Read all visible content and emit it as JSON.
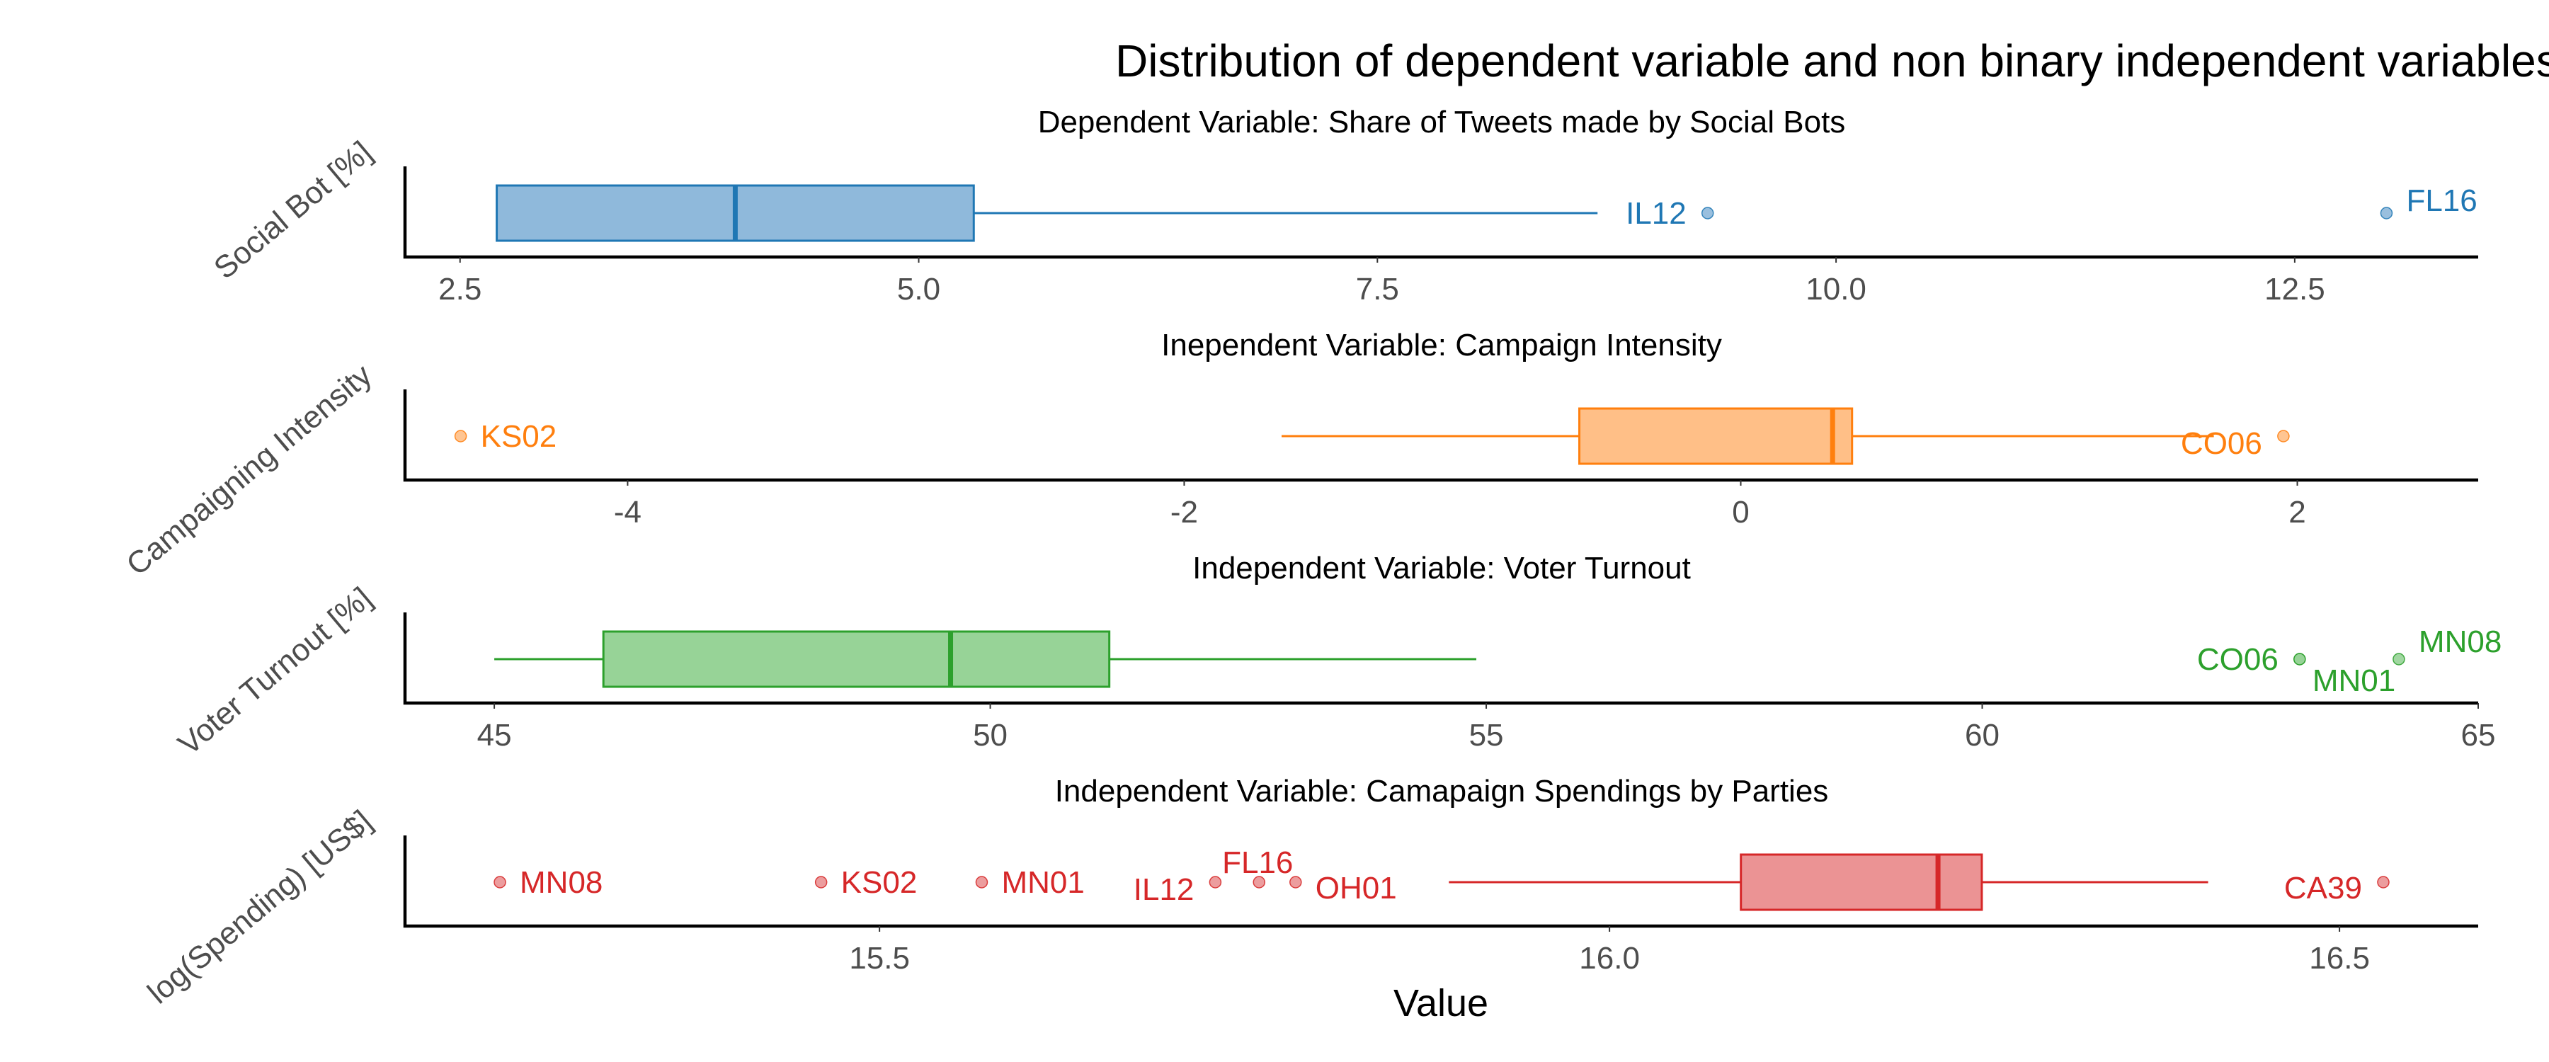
{
  "chart_data": {
    "type": "boxplot",
    "title": "Distribution of dependent variable and non binary independent variables in the sampled districts:",
    "xlabel": "Value",
    "grid": false,
    "legend": "none",
    "panels": [
      {
        "id": "social-bot",
        "subtitle": "Dependent Variable: Share of Tweets made by Social Bots",
        "ylabel": "Social Bot [%]",
        "color": "#1f77b4",
        "fill": "#8fb9db",
        "xlim": [
          2.2,
          13.5
        ],
        "ticks": [
          "2.5",
          "5.0",
          "7.5",
          "10.0",
          "12.5"
        ],
        "box": {
          "whisker_low": 2.7,
          "q1": 2.7,
          "median": 4.0,
          "q3": 5.3,
          "whisker_high": 8.7
        },
        "outliers": [
          {
            "label": "IL12",
            "value": 9.3,
            "label_side": "left",
            "label_dy": 0
          },
          {
            "label": "FL16",
            "value": 13.0,
            "label_side": "right",
            "label_dy": -18
          }
        ]
      },
      {
        "id": "campaign-intensity",
        "subtitle": "Inependent Variable: Campaign Intensity",
        "ylabel": "Campaigning Intensity",
        "color": "#ff7f0e",
        "fill": "#ffbf87",
        "xlim": [
          -4.8,
          2.65
        ],
        "ticks": [
          "-4",
          "-2",
          "0",
          "2"
        ],
        "box": {
          "whisker_low": -1.65,
          "q1": -0.58,
          "median": 0.33,
          "q3": 0.4,
          "whisker_high": 1.7
        },
        "outliers": [
          {
            "label": "KS02",
            "value": -4.6,
            "label_side": "right",
            "label_dy": 0
          },
          {
            "label": "CO06",
            "value": 1.95,
            "label_side": "left",
            "label_dy": 10
          }
        ]
      },
      {
        "id": "voter-turnout",
        "subtitle": "Independent Variable: Voter Turnout",
        "ylabel": "Voter Turnout [%]",
        "color": "#2ca02c",
        "fill": "#97d397",
        "xlim": [
          44.1,
          65.0
        ],
        "ticks": [
          "45",
          "50",
          "55",
          "60",
          "65"
        ],
        "box": {
          "whisker_low": 45.0,
          "q1": 46.1,
          "median": 49.6,
          "q3": 51.2,
          "whisker_high": 54.9
        },
        "outliers": [
          {
            "label": "CO06",
            "value": 63.2,
            "label_side": "left",
            "label_dy": 0
          },
          {
            "label": "MN01",
            "value": 63.2,
            "label_side": "right-below",
            "label_dy": 30
          },
          {
            "label": "MN08",
            "value": 64.2,
            "label_side": "right",
            "label_dy": -25
          }
        ]
      },
      {
        "id": "spending",
        "subtitle": "Independent Variable: Camapaign Spendings by Parties",
        "ylabel": "log(Spending) [US$]",
        "color": "#d62728",
        "fill": "#eb9394",
        "xlim": [
          15.175,
          16.595
        ],
        "ticks": [
          "15.5",
          "16.0",
          "16.5"
        ],
        "box": {
          "whisker_low": 15.89,
          "q1": 16.09,
          "median": 16.225,
          "q3": 16.255,
          "whisker_high": 16.41
        },
        "outliers": [
          {
            "label": "MN08",
            "value": 15.24,
            "label_side": "right",
            "label_dy": 0
          },
          {
            "label": "KS02",
            "value": 15.46,
            "label_side": "right",
            "label_dy": 0
          },
          {
            "label": "MN01",
            "value": 15.57,
            "label_side": "right",
            "label_dy": 0
          },
          {
            "label": "IL12",
            "value": 15.73,
            "label_side": "left",
            "label_dy": 10
          },
          {
            "label": "FL16",
            "value": 15.76,
            "label_side": "above",
            "label_dy": -28
          },
          {
            "label": "OH01",
            "value": 15.785,
            "label_side": "right",
            "label_dy": 8
          },
          {
            "label": "CA39",
            "value": 16.53,
            "label_side": "left",
            "label_dy": 8
          }
        ]
      }
    ]
  }
}
